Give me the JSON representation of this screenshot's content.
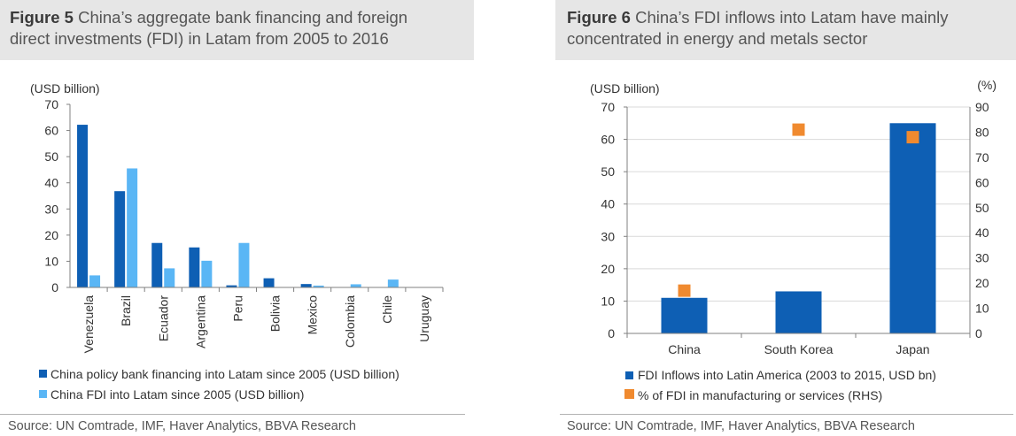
{
  "figure5": {
    "title_prefix": "Figure 5",
    "title_line1": "China’s aggregate bank financing and foreign",
    "title_line2": "direct investments (FDI) in Latam from 2005 to 2016",
    "source": "Source: UN Comtrade, IMF, Haver Analytics, BBVA Research"
  },
  "figure6": {
    "title_prefix": "Figure 6",
    "title_line1": "China’s FDI inflows into Latam have mainly",
    "title_line2": "concentrated in energy and metals sector",
    "source": "Source:  UN Comtrade, IMF, Haver Analytics, BBVA Research"
  },
  "chart_data": [
    {
      "type": "bar",
      "ylabel": "(USD billion)",
      "ylim": [
        0,
        70
      ],
      "yticks": [
        0,
        10,
        20,
        30,
        40,
        50,
        60,
        70
      ],
      "categories": [
        "Venezuela",
        "Brazil",
        "Ecuador",
        "Argentina",
        "Peru",
        "Bolivia",
        "Mexico",
        "Colombia",
        "Chile",
        "Uruguay"
      ],
      "series": [
        {
          "name": "China policy bank financing into Latam since 2005 (USD billion)",
          "color": "#0e5fb4",
          "values": [
            62.2,
            36.8,
            17,
            15.3,
            0.8,
            3.5,
            1.3,
            0,
            0,
            0
          ]
        },
        {
          "name": "China FDI into Latam since 2005 (USD billion)",
          "color": "#5ab6f5",
          "values": [
            4.6,
            45.5,
            7.3,
            10.2,
            17,
            0,
            0.7,
            1.2,
            3,
            0
          ]
        }
      ],
      "legend_position": "bottom",
      "grid": false
    },
    {
      "type": "bar",
      "ylabel": "(USD billion)",
      "ylabel_right": "(%)",
      "ylim": [
        0,
        70
      ],
      "ylim_right": [
        0,
        90
      ],
      "yticks": [
        0,
        10,
        20,
        30,
        40,
        50,
        60,
        70
      ],
      "yticks_right": [
        0,
        10,
        20,
        30,
        40,
        50,
        60,
        70,
        80,
        90
      ],
      "categories": [
        "China",
        "South Korea",
        "Japan"
      ],
      "series": [
        {
          "name": "FDI Inflows into Latin America (2003 to 2015, USD bn)",
          "color": "#0e5fb4",
          "kind": "bar",
          "values": [
            11,
            13,
            65
          ]
        },
        {
          "name": "% of FDI in manufacturing or services (RHS)",
          "color": "#f08a2f",
          "kind": "marker",
          "axis": "right",
          "values": [
            17,
            81,
            78
          ]
        }
      ],
      "legend_position": "bottom",
      "grid": true
    }
  ]
}
